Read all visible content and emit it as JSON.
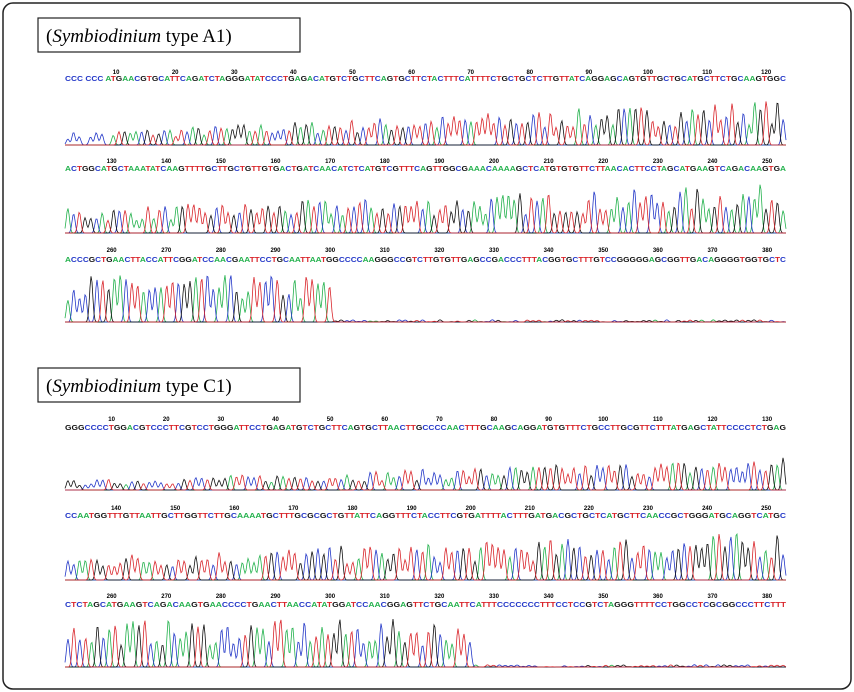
{
  "panels": [
    {
      "title": {
        "open": "(",
        "italic": "Symbiodinium",
        "rest": " type A1)"
      },
      "rows": [
        {
          "positions": [
            10,
            20,
            30,
            40,
            50,
            60,
            70,
            80,
            90,
            100,
            110,
            120
          ],
          "sequence": "CCC CCC ATGAACGTGCATTCAGATCTAGGGATATCCCTGAGACATGTCTGCTTCAGTGCTTCTACTTTCATTTTCTGCTGCTCTTGTTATCAGGAGCAGTGTTGCTGCATGCTTCTGCAAGTGGC"
        },
        {
          "positions": [
            130,
            140,
            150,
            160,
            170,
            180,
            190,
            200,
            210,
            220,
            230,
            240,
            250
          ],
          "sequence": "ACTGGCATGCTAAATATCAAGTTTTGCTTGCTGTTGTGACTGATCAACATCTCATGTCGTTTCAGTTGGCGAAACAAAAGCTCATGTGTGTTCTTAACACTTCCTAGCATGAAGTCAGACAAGTGA"
        },
        {
          "positions": [
            260,
            270,
            280,
            290,
            300,
            310,
            320,
            330,
            340,
            350,
            360,
            370,
            380
          ],
          "sequence": "ACCCGCTGAACTTACCATTCGGATCCAACGAATTCCTGCAATTAATGGCCCCAAGGGCCGTCTTGTGTTGAGCCGACCCTTTACGGTGCTTTGTCCGGGGGAGCGGTTGACAGGGGTGGTGCTC"
        }
      ]
    },
    {
      "title": {
        "open": "(",
        "italic": "Symbiodinium",
        "rest": " type C1)"
      },
      "rows": [
        {
          "positions": [
            10,
            20,
            30,
            40,
            50,
            60,
            70,
            80,
            90,
            100,
            110,
            120,
            130
          ],
          "sequence": "GGGCCCCTGGACGTCCCTTCGTCCTGGGATTCCTGAGATGTCTGCTTCAGTGCTTAACTTGCCCCAACTTTGCAAGCAGGATGTGTTTCTGCCTTGCGTTCTTTATGAGCTATTCCCCTCTGAG"
        },
        {
          "positions": [
            140,
            150,
            160,
            170,
            180,
            190,
            200,
            210,
            220,
            230,
            240,
            250
          ],
          "sequence": "CCAATGGTTTGTTAATTGCTTGGTTCTTGCAAAATGCTTTGCGCGCTGTTATTCAGGTTTCTACCTTCGTGATTTTACTTTGATGACGCTGCTCATGCTTCAACCGCTGGGATGCAGGTCATGC"
        },
        {
          "positions": [
            260,
            270,
            280,
            290,
            300,
            310,
            320,
            330,
            340,
            350,
            360,
            370,
            380
          ],
          "sequence": "CTCTAGCATGAAGTCAGACAAGTGAACCCCTGAACTTAACCATATGGATCCAACGGAGTTCTGCAATTCATTTCCCCCCCTTTCCTCCGTCTAGGGTTTTCCTGGCCTCGCGGCCCTTCTTT"
        }
      ]
    }
  ]
}
